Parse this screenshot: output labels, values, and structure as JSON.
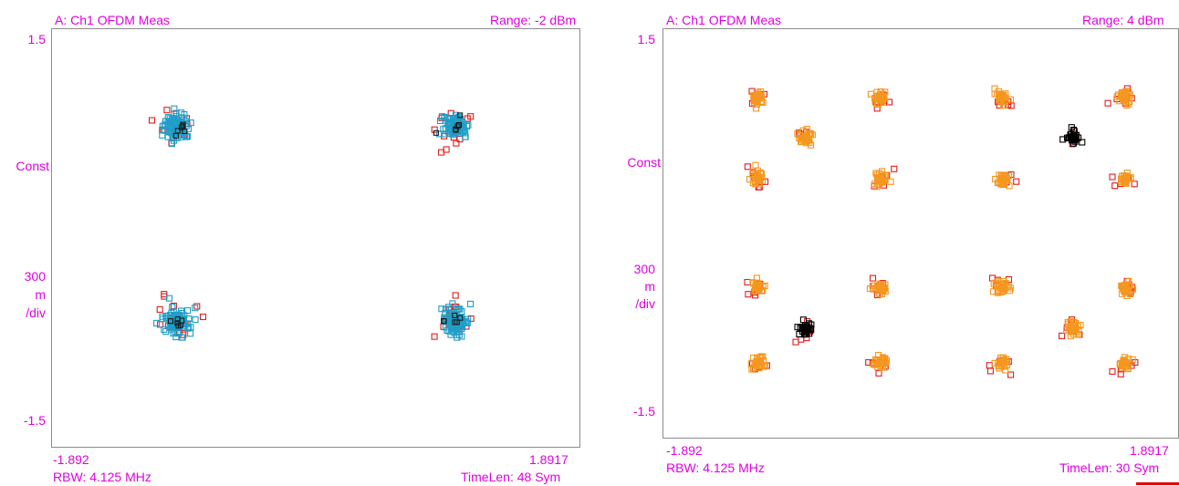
{
  "colors": {
    "label": "#e100e1",
    "frame": "#8c8c8c",
    "ref_red": "#e11e1e",
    "cyan": "#1e9ec8",
    "orange": "#f5961e",
    "black": "#000000",
    "marker": "#e10000"
  },
  "charts": [
    {
      "title": "A: Ch1 OFDM Meas",
      "range": "Range: -2 dBm",
      "y_top": "1.5",
      "y_mid": "Const",
      "y_scale": [
        "300",
        "m",
        "/div"
      ],
      "y_bottom": "-1.5",
      "x_left": "-1.892",
      "x_right": "1.8917",
      "rbw": "RBW: 4.125 MHz",
      "timelen": "TimeLen: 48  Sym"
    },
    {
      "title": "A: Ch1 OFDM Meas",
      "range": "Range: 4 dBm",
      "y_top": "1.5",
      "y_mid": "Const",
      "y_scale": [
        "300",
        "m",
        "/div"
      ],
      "y_bottom": "-1.5",
      "x_left": "-1.892",
      "x_right": "1.8917",
      "rbw": "RBW: 4.125 MHz",
      "timelen": "TimeLen: 30  Sym"
    }
  ],
  "chart_data": [
    {
      "type": "scatter",
      "title": "A: Ch1 OFDM Meas",
      "xlim": [
        -1.892,
        1.8917
      ],
      "ylim": [
        -1.5,
        1.5
      ],
      "grid": false,
      "series": [
        {
          "color": "#1e9ec8",
          "points": [
            [
              -1.0,
              0.8
            ],
            [
              1.0,
              0.8
            ],
            [
              -1.0,
              -0.6
            ],
            [
              1.0,
              -0.6
            ]
          ]
        }
      ]
    },
    {
      "type": "scatter",
      "title": "A: Ch1 OFDM Meas",
      "xlim": [
        -1.892,
        1.8917
      ],
      "ylim": [
        -1.5,
        1.5
      ],
      "grid": false,
      "series": [
        {
          "color": "#f5961e",
          "points": [
            [
              -1.2,
              1.0
            ],
            [
              -0.3,
              1.0
            ],
            [
              0.6,
              1.0
            ],
            [
              1.5,
              1.0
            ],
            [
              -1.2,
              0.4
            ],
            [
              -0.3,
              0.4
            ],
            [
              0.6,
              0.4
            ],
            [
              1.5,
              0.4
            ],
            [
              -1.2,
              -0.4
            ],
            [
              -0.3,
              -0.4
            ],
            [
              0.6,
              -0.4
            ],
            [
              1.5,
              -0.4
            ],
            [
              -1.2,
              -0.95
            ],
            [
              -0.3,
              -0.95
            ],
            [
              0.6,
              -0.95
            ],
            [
              1.5,
              -0.95
            ],
            [
              -0.85,
              0.7
            ],
            [
              1.12,
              -0.7
            ]
          ]
        },
        {
          "color": "#000000",
          "points": [
            [
              1.12,
              0.7
            ],
            [
              -0.85,
              -0.7
            ]
          ]
        }
      ]
    }
  ]
}
